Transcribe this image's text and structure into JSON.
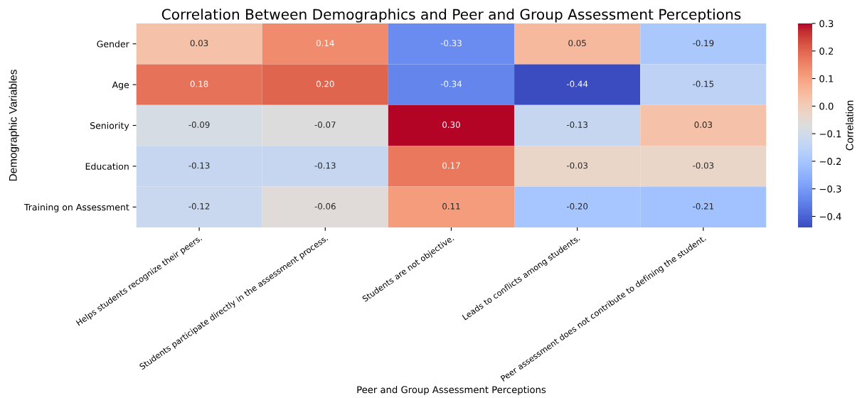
{
  "chart_data": {
    "type": "heatmap",
    "title": "Correlation Between Demographics and Peer and Group Assessment Perceptions",
    "xlabel": "Peer and Group Assessment Perceptions",
    "ylabel": "Demographic Variables",
    "clabel": "Correlation",
    "categories": [
      "Helps students recognize their peers.",
      "Students participate directly in the assessment process.",
      "Students are not objective.",
      "Leads to conflicts among students.",
      "Peer assessment does not contribute to defining the student."
    ],
    "y_categories": [
      "Gender",
      "Age",
      "Seniority",
      "Education",
      "Training on Assessment"
    ],
    "cells": [
      [
        0.03,
        0.14,
        -0.33,
        0.05,
        -0.19
      ],
      [
        0.18,
        0.2,
        -0.34,
        -0.44,
        -0.15
      ],
      [
        -0.09,
        -0.07,
        0.3,
        -0.13,
        0.03
      ],
      [
        -0.13,
        -0.13,
        0.17,
        -0.03,
        -0.03
      ],
      [
        -0.12,
        -0.06,
        0.11,
        -0.2,
        -0.21
      ]
    ],
    "cell_labels": [
      [
        "0.03",
        "0.14",
        "-0.33",
        "0.05",
        "-0.19"
      ],
      [
        "0.18",
        "0.20",
        "-0.34",
        "-0.44",
        "-0.15"
      ],
      [
        "-0.09",
        "-0.07",
        "0.30",
        "-0.13",
        "0.03"
      ],
      [
        "-0.13",
        "-0.13",
        "0.17",
        "-0.03",
        "-0.03"
      ],
      [
        "-0.12",
        "-0.06",
        "0.11",
        "-0.20",
        "-0.21"
      ]
    ],
    "clim": [
      -0.44,
      0.3
    ],
    "cticks": [
      {
        "value": -0.4,
        "label": "−0.4"
      },
      {
        "value": -0.3,
        "label": "−0.3"
      },
      {
        "value": -0.2,
        "label": "−0.2"
      },
      {
        "value": -0.1,
        "label": "−0.1"
      },
      {
        "value": 0.0,
        "label": "0.0"
      },
      {
        "value": 0.1,
        "label": "0.1"
      },
      {
        "value": 0.2,
        "label": "0.2"
      },
      {
        "value": 0.3,
        "label": "0.3"
      }
    ]
  }
}
